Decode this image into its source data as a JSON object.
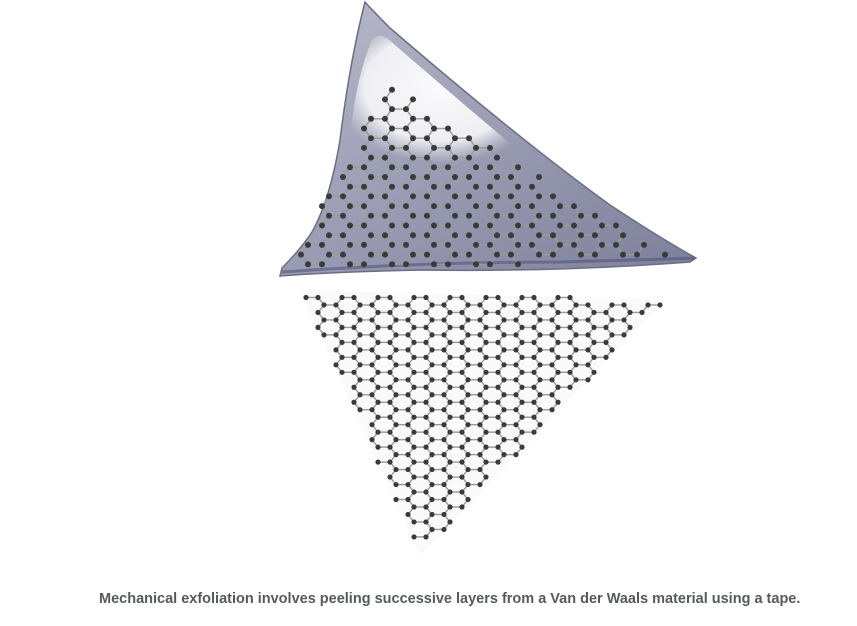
{
  "figure": {
    "caption": "Mechanical exfoliation involves peeling successive layers from a Van der Waals material using a tape.",
    "colors": {
      "tape": "#8f92a8",
      "tape_edge": "#6b6e85",
      "tape_highlight": "#f4f4f6",
      "atom": "#3a3a3a",
      "bond": "#9a9a9a"
    },
    "components": [
      "adhesive-tape",
      "peeled-graphene-layer",
      "graphite-crystal-lattice"
    ]
  }
}
